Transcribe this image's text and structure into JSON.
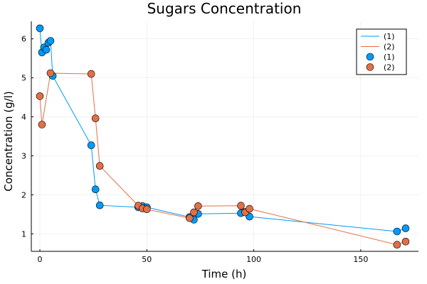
{
  "chart_data": {
    "type": "scatter",
    "title": "Sugars Concentration",
    "xlabel": "Time (h)",
    "ylabel": "Concentration (g/l)",
    "xlim": [
      -4,
      177
    ],
    "ylim": [
      0.55,
      6.45
    ],
    "xticks": [
      0,
      50,
      100,
      150
    ],
    "yticks": [
      1,
      2,
      3,
      4,
      5,
      6
    ],
    "grid": true,
    "legend_position": "top-right",
    "series": [
      {
        "name": "(1)",
        "color": "#009af9",
        "x": [
          0,
          1,
          2,
          3,
          4,
          5,
          6,
          24,
          26,
          28,
          46,
          48,
          50,
          70,
          72,
          74,
          94,
          96,
          98,
          167,
          171
        ],
        "y": [
          6.27,
          5.65,
          5.78,
          5.72,
          5.9,
          5.95,
          5.05,
          3.27,
          2.14,
          1.73,
          1.68,
          1.71,
          1.68,
          1.43,
          1.36,
          1.51,
          1.53,
          1.56,
          1.44,
          1.06,
          1.14
        ]
      },
      {
        "name": "(2)",
        "color": "#e26f46",
        "x": [
          0,
          1,
          5,
          24,
          26,
          28,
          46,
          48,
          50,
          70,
          72,
          74,
          94,
          96,
          98,
          167,
          171
        ],
        "y": [
          4.53,
          3.8,
          5.12,
          5.1,
          3.96,
          2.74,
          1.72,
          1.65,
          1.63,
          1.4,
          1.55,
          1.71,
          1.72,
          1.55,
          1.64,
          0.72,
          0.8
        ]
      }
    ],
    "legend": {
      "entries": [
        {
          "label": "(1)",
          "kind": "line",
          "series": 0
        },
        {
          "label": "(2)",
          "kind": "line",
          "series": 1
        },
        {
          "label": "(1)",
          "kind": "marker",
          "series": 0
        },
        {
          "label": "(2)",
          "kind": "marker",
          "series": 1
        }
      ]
    }
  }
}
